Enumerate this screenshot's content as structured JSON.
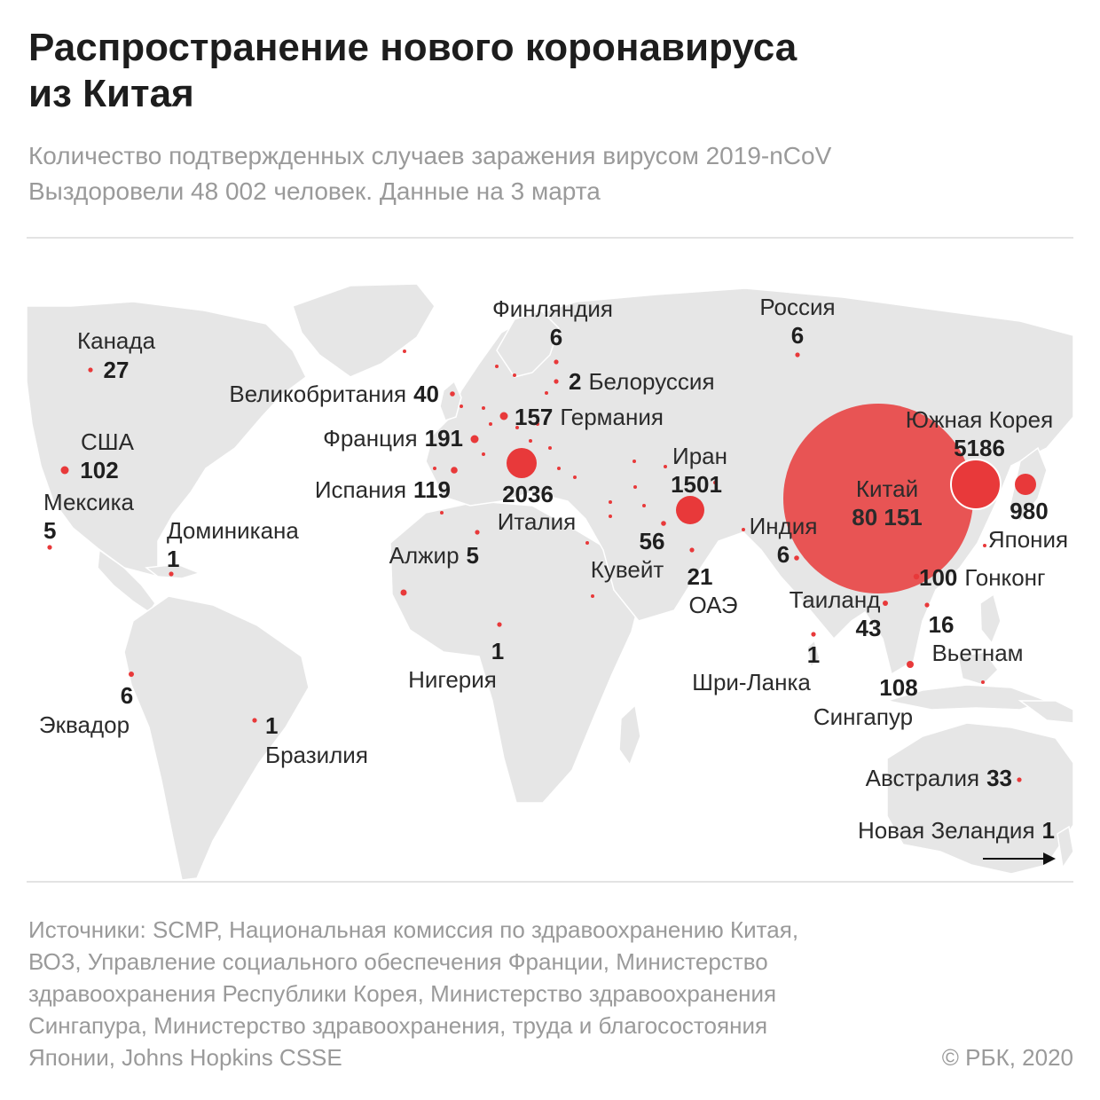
{
  "header": {
    "title_line1": "Распространение нового коронавируса",
    "title_line2": "из Китая",
    "subtitle_line1": "Количество подтвержденных случаев заражения вирусом 2019-nCoV",
    "subtitle_line2": "Выздоровели 48 002 человек. Данные на 3 марта"
  },
  "colors": {
    "marker": "#e8393a",
    "land": "#e6e6e6",
    "text_muted": "#9a9a9a"
  },
  "countries": [
    {
      "id": "canada",
      "name": "Канада",
      "cases": "27"
    },
    {
      "id": "usa",
      "name": "США",
      "cases": "102"
    },
    {
      "id": "mexico",
      "name": "Мексика",
      "cases": "5"
    },
    {
      "id": "dominican",
      "name": "Доминикана",
      "cases": "1"
    },
    {
      "id": "ecuador",
      "name": "Эквадор",
      "cases": "6"
    },
    {
      "id": "brazil",
      "name": "Бразилия",
      "cases": "1"
    },
    {
      "id": "uk",
      "name": "Великобритания",
      "cases": "40"
    },
    {
      "id": "france",
      "name": "Франция",
      "cases": "191"
    },
    {
      "id": "spain",
      "name": "Испания",
      "cases": "119"
    },
    {
      "id": "algeria",
      "name": "Алжир",
      "cases": "5"
    },
    {
      "id": "nigeria",
      "name": "Нигерия",
      "cases": "1"
    },
    {
      "id": "finland",
      "name": "Финляндия",
      "cases": "6"
    },
    {
      "id": "belarus",
      "name": "Белоруссия",
      "cases": "2"
    },
    {
      "id": "germany",
      "name": "Германия",
      "cases": "157"
    },
    {
      "id": "italy",
      "name": "Италия",
      "cases": "2036"
    },
    {
      "id": "iran",
      "name": "Иран",
      "cases": "1501"
    },
    {
      "id": "kuwait",
      "name": "Кувейт",
      "cases": "56"
    },
    {
      "id": "uae",
      "name": "ОАЭ",
      "cases": "21"
    },
    {
      "id": "russia",
      "name": "Россия",
      "cases": "6"
    },
    {
      "id": "india",
      "name": "Индия",
      "cases": "6"
    },
    {
      "id": "china",
      "name": "Китай",
      "cases": "80 151"
    },
    {
      "id": "south_korea",
      "name": "Южная Корея",
      "cases": "5186"
    },
    {
      "id": "japan",
      "name": "Япония",
      "cases": "980"
    },
    {
      "id": "hong_kong",
      "name": "Гонконг",
      "cases": "100"
    },
    {
      "id": "thailand",
      "name": "Таиланд",
      "cases": "43"
    },
    {
      "id": "vietnam",
      "name": "Вьетнам",
      "cases": "16"
    },
    {
      "id": "sri_lanka",
      "name": "Шри-Ланка",
      "cases": "1"
    },
    {
      "id": "singapore",
      "name": "Сингапур",
      "cases": "108"
    },
    {
      "id": "australia",
      "name": "Австралия",
      "cases": "33"
    },
    {
      "id": "new_zealand",
      "name": "Новая Зеландия",
      "cases": "1"
    }
  ],
  "footer": {
    "sources_line1": "Источники: SCMP, Национальная комиссия по здравоохранению Китая,",
    "sources_line2": "ВОЗ, Управление социального обеспечения Франции, Министерство",
    "sources_line3": "здравоохранения Республики Корея, Министерство здравоохранения",
    "sources_line4": "Сингапура, Министерство здравоохранения, труда и благосостояния",
    "sources_line5": "Японии, Johns Hopkins CSSE",
    "copyright": "© РБК, 2020"
  }
}
